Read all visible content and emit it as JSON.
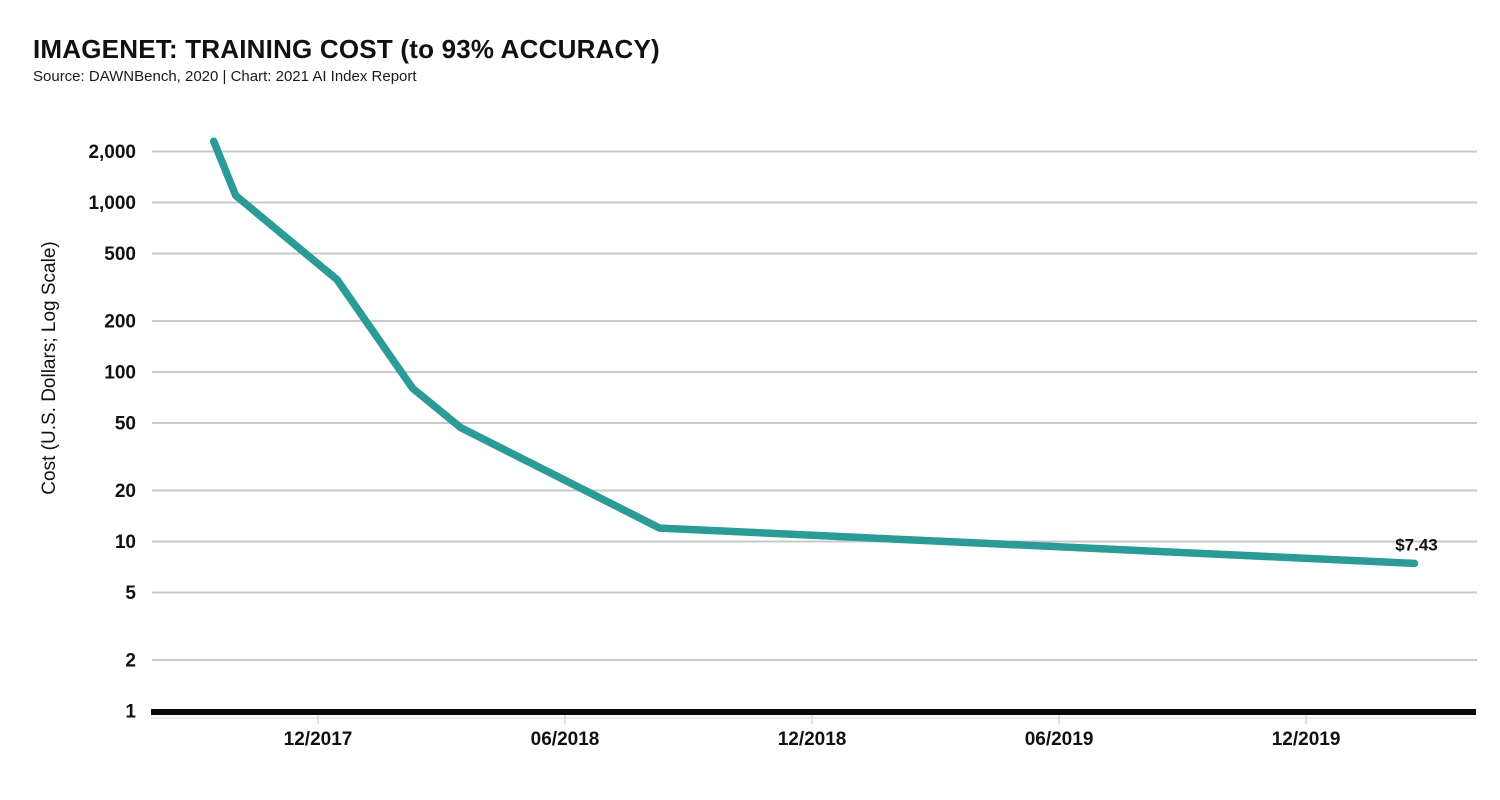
{
  "header": {
    "title": "IMAGENET: TRAINING COST (to 93% ACCURACY)",
    "subtitle": "Source: DAWNBench, 2020 | Chart: 2021 AI Index Report"
  },
  "chart_data": {
    "type": "line",
    "title": "IMAGENET: TRAINING COST (to 93% ACCURACY)",
    "source_note": "Source: DAWNBench, 2020 | Chart: 2021 AI Index Report",
    "xlabel": "",
    "ylabel": "Cost (U.S. Dollars; Log Scale)",
    "y_scale": "log",
    "ylim": [
      1,
      2400
    ],
    "y_ticks": [
      {
        "value": 1,
        "label": "1"
      },
      {
        "value": 2,
        "label": "2"
      },
      {
        "value": 5,
        "label": "5"
      },
      {
        "value": 10,
        "label": "10"
      },
      {
        "value": 20,
        "label": "20"
      },
      {
        "value": 50,
        "label": "50"
      },
      {
        "value": 100,
        "label": "100"
      },
      {
        "value": 200,
        "label": "200"
      },
      {
        "value": 500,
        "label": "500"
      },
      {
        "value": 1000,
        "label": "1,000"
      },
      {
        "value": 2000,
        "label": "2,000"
      }
    ],
    "x_ticks": [
      "12/2017",
      "06/2018",
      "12/2018",
      "06/2019",
      "12/2019"
    ],
    "grid": "horizontal",
    "legend": "none",
    "series": [
      {
        "name": "ImageNet training cost to 93% accuracy (USD)",
        "color": "#2b9b97",
        "points": [
          {
            "date": "2017-09-15",
            "cost": 2300
          },
          {
            "date": "2017-10-01",
            "cost": 1100
          },
          {
            "date": "2017-12-15",
            "cost": 350
          },
          {
            "date": "2018-02-10",
            "cost": 80
          },
          {
            "date": "2018-03-15",
            "cost": 47
          },
          {
            "date": "2018-08-10",
            "cost": 12
          },
          {
            "date": "2020-02-20",
            "cost": 7.43
          }
        ]
      }
    ],
    "end_label": "$7.43",
    "colors": {
      "line": "#2b9b97",
      "grid": "#c9c9c9",
      "axis": "#0a0a0a",
      "tick_mark": "#e0e0e0",
      "axis_shadow": "#ededed",
      "text": "#111111"
    }
  }
}
